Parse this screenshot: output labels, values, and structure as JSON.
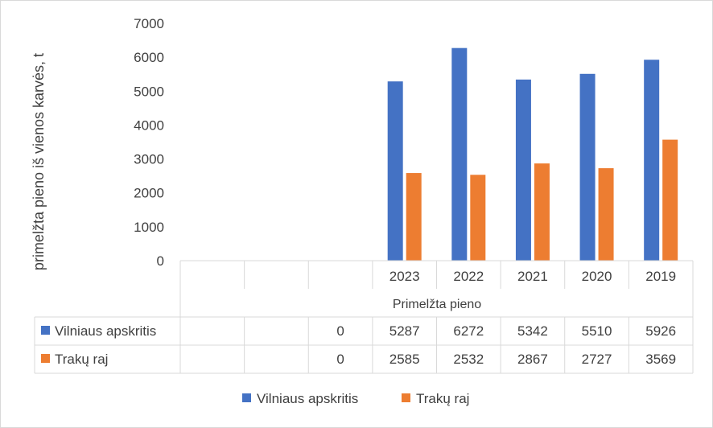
{
  "chart_data": {
    "type": "bar",
    "ylabel": "primelžta pieno iš vienos karvės, t",
    "xlabel": "Primelžta pieno",
    "ylim": [
      0,
      7000
    ],
    "yticks": [
      "0",
      "1000",
      "2000",
      "3000",
      "4000",
      "5000",
      "6000",
      "7000"
    ],
    "categories": [
      "",
      "",
      "",
      "2023",
      "2022",
      "2021",
      "2020",
      "2019"
    ],
    "series": [
      {
        "name": "Vilniaus apskritis",
        "color": "#4472c4",
        "values": [
          null,
          null,
          0,
          5287,
          6272,
          5342,
          5510,
          5926
        ],
        "table_values": [
          "",
          "",
          "0",
          "5287",
          "6272",
          "5342",
          "5510",
          "5926"
        ]
      },
      {
        "name": "Trakų raj",
        "color": "#ed7d31",
        "values": [
          null,
          null,
          0,
          2585,
          2532,
          2867,
          2727,
          3569
        ],
        "table_values": [
          "",
          "",
          "0",
          "2585",
          "2532",
          "2867",
          "2727",
          "3569"
        ]
      }
    ],
    "grid": false,
    "legend_position": "bottom",
    "data_table": true
  }
}
